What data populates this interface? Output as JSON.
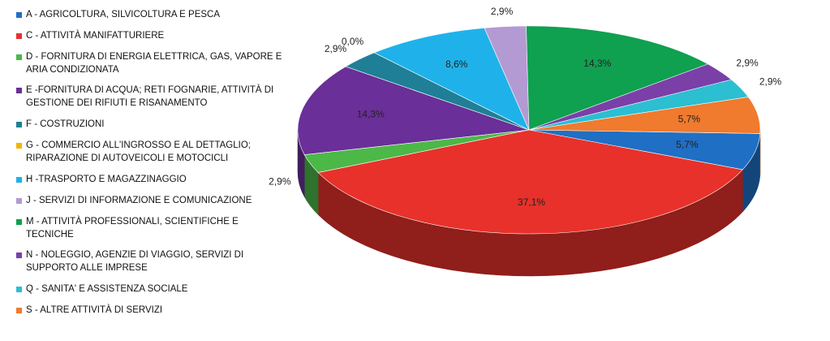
{
  "chart_data": {
    "type": "pie",
    "categories": [
      "A - AGRICOLTURA, SILVICOLTURA E PESCA",
      "C - ATTIVITÀ MANIFATTURIERE",
      "D - FORNITURA DI ENERGIA ELETTRICA, GAS, VAPORE E ARIA CONDIZIONATA",
      "E -FORNITURA DI ACQUA; RETI FOGNARIE, ATTIVITÀ DI GESTIONE DEI RIFIUTI E RISANAMENTO",
      "F - COSTRUZIONI",
      "G - COMMERCIO ALL'INGROSSO E AL DETTAGLIO; RIPARAZIONE DI AUTOVEICOLI E MOTOCICLI",
      "H -TRASPORTO E MAGAZZINAGGIO",
      "J - SERVIZI DI INFORMAZIONE E COMUNICAZIONE",
      "M - ATTIVITÀ PROFESSIONALI, SCIENTIFICHE E TECNICHE",
      "N - NOLEGGIO, AGENZIE DI VIAGGIO, SERVIZI DI SUPPORTO ALLE IMPRESE",
      "Q - SANITA' E ASSISTENZA SOCIALE",
      "S - ALTRE ATTIVITÀ DI SERVIZI"
    ],
    "values": [
      5.7,
      37.1,
      2.9,
      14.3,
      2.9,
      0.0,
      8.6,
      2.9,
      14.3,
      2.9,
      2.9,
      5.7
    ],
    "value_labels": [
      "5,7%",
      "37,1%",
      "2,9%",
      "14,3%",
      "2,9%",
      "0,0%",
      "8,6%",
      "2,9%",
      "14,3%",
      "2,9%",
      "2,9%",
      "5,7%"
    ],
    "colors": [
      "#1f6fc5",
      "#e8312a",
      "#4cb848",
      "#6a2f98",
      "#1f7f96",
      "#f5b400",
      "#1fb2ea",
      "#b39ad3",
      "#0fa050",
      "#7b3fa8",
      "#2bbfd1",
      "#f07a2d"
    ],
    "legend": "left"
  }
}
